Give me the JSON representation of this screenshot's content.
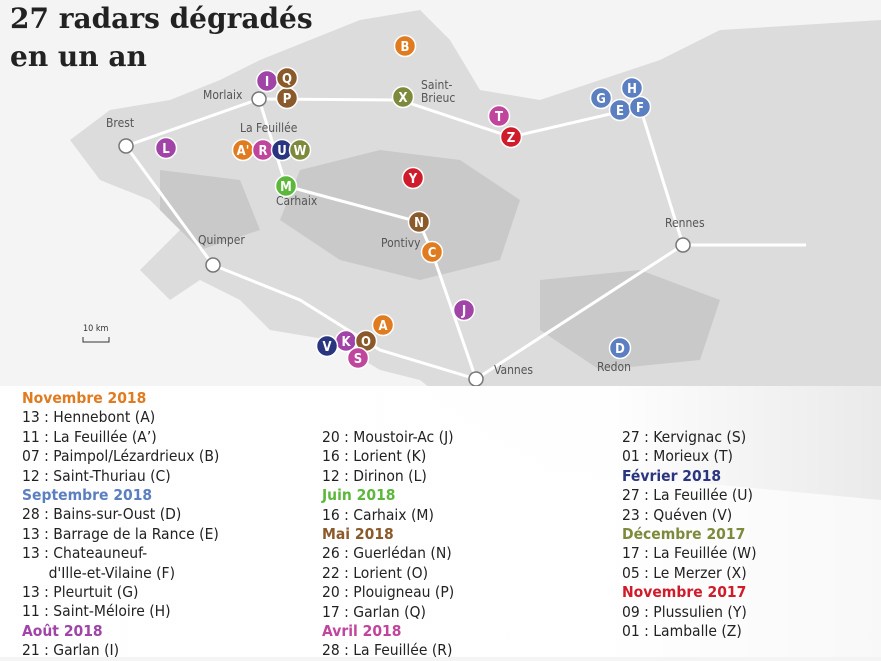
{
  "title": [
    "27 radars dégradés",
    "en un an"
  ],
  "scale": "10 km",
  "cities": [
    "Morlaix",
    "Brest",
    "La Feuillée",
    "Carhaix",
    "Saint-\nBrieuc",
    "Quimper",
    "Pontivy",
    "Rennes",
    "Vannes",
    "Redon"
  ],
  "markers": [
    {
      "letter": "A",
      "color": "#e07b20"
    },
    {
      "letter": "A'",
      "color": "#e07b20"
    },
    {
      "letter": "B",
      "color": "#e07b20"
    },
    {
      "letter": "C",
      "color": "#e07b20"
    },
    {
      "letter": "D",
      "color": "#5b7fc0"
    },
    {
      "letter": "E",
      "color": "#5b7fc0"
    },
    {
      "letter": "F",
      "color": "#5b7fc0"
    },
    {
      "letter": "G",
      "color": "#5b7fc0"
    },
    {
      "letter": "H",
      "color": "#5b7fc0"
    },
    {
      "letter": "I",
      "color": "#a044a8"
    },
    {
      "letter": "J",
      "color": "#a044a8"
    },
    {
      "letter": "K",
      "color": "#a044a8"
    },
    {
      "letter": "L",
      "color": "#a044a8"
    },
    {
      "letter": "M",
      "color": "#5cb83a"
    },
    {
      "letter": "N",
      "color": "#8b5a2b"
    },
    {
      "letter": "O",
      "color": "#8b5a2b"
    },
    {
      "letter": "P",
      "color": "#8b5a2b"
    },
    {
      "letter": "Q",
      "color": "#8b5a2b"
    },
    {
      "letter": "R",
      "color": "#c0459c"
    },
    {
      "letter": "S",
      "color": "#c0459c"
    },
    {
      "letter": "T",
      "color": "#c0459c"
    },
    {
      "letter": "U",
      "color": "#2a3580"
    },
    {
      "letter": "V",
      "color": "#2a3580"
    },
    {
      "letter": "W",
      "color": "#7d8a3c"
    },
    {
      "letter": "X",
      "color": "#7d8a3c"
    },
    {
      "letter": "Y",
      "color": "#d01c2a"
    },
    {
      "letter": "Z",
      "color": "#d01c2a"
    }
  ],
  "legend": [
    [
      {
        "month": "Novembre 2018",
        "color": "#e07b20",
        "entries": [
          "13 : Hennebont (A)",
          "11 : La Feuillée (A’)",
          "07 : Paimpol/Lézardrieux (B)",
          "12 : Saint-Thuriau (C)"
        ]
      },
      {
        "month": "Septembre 2018",
        "color": "#5b7fc0",
        "entries": [
          "28 : Bains-sur-Oust (D)",
          "13 : Barrage de la Rance (E)",
          "13 : Chateauneuf-\n      d'Ille-et-Vilaine (F)",
          "13 : Pleurtuit (G)",
          "11 : Saint-Méloire (H)"
        ]
      },
      {
        "month": "Août 2018",
        "color": "#a044a8",
        "entries": [
          "21 : Garlan (I)"
        ]
      }
    ],
    [
      {
        "entries": [
          "20 : Moustoir-Ac (J)",
          "16 : Lorient (K)",
          "12 : Dirinon (L)"
        ]
      },
      {
        "month": "Juin 2018",
        "color": "#5cb83a",
        "entries": [
          "16 : Carhaix (M)"
        ]
      },
      {
        "month": "Mai 2018",
        "color": "#8b5a2b",
        "entries": [
          "26 : Guerlédan (N)",
          "22 : Lorient (O)",
          "20 : Plouigneau (P)",
          "17 : Garlan (Q)"
        ]
      },
      {
        "month": "Avril 2018",
        "color": "#c0459c",
        "entries": [
          "28 : La Feuillée (R)"
        ]
      }
    ],
    [
      {
        "entries": [
          "27 : Kervignac (S)",
          "01 : Morieux (T)"
        ]
      },
      {
        "month": "Février 2018",
        "color": "#2a3580",
        "entries": [
          "27 : La Feuillée (U)",
          "23 : Quéven (V)"
        ]
      },
      {
        "month": "Décembre 2017",
        "color": "#7d8a3c",
        "entries": [
          "17 : La Feuillée (W)",
          "05 : Le Merzer (X)"
        ]
      },
      {
        "month": "Novembre 2017",
        "color": "#d01c2a",
        "entries": [
          "09 : Plussulien (Y)",
          "01 : Lamballe (Z)"
        ]
      }
    ]
  ]
}
